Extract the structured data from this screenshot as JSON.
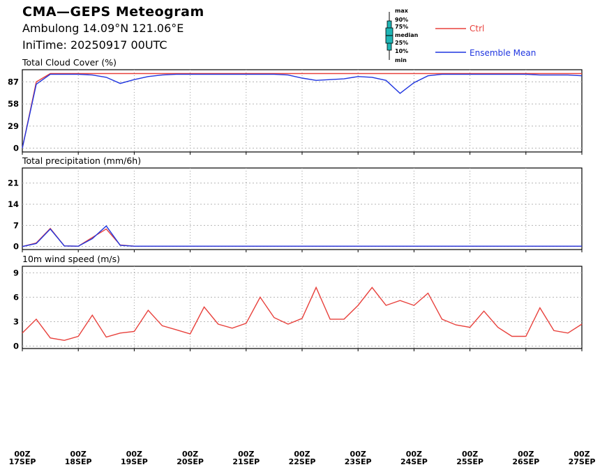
{
  "header": {
    "title": "CMA—GEPS Meteogram",
    "station": "Ambulong 14.09°N 121.06°E",
    "init_time": "IniTime: 20250917 00UTC"
  },
  "legend": {
    "key_labels": [
      "max",
      "90%",
      "75%",
      "median",
      "25%",
      "10%",
      "min"
    ],
    "ctrl_label": "Ctrl",
    "mean_label": "Ensemble Mean",
    "ctrl_color": "#e8413c",
    "mean_color": "#1f35e0",
    "box_color": "#1fb5b5"
  },
  "x_axis": {
    "tick_labels": [
      [
        "00Z",
        "17SEP"
      ],
      [
        "00Z",
        "18SEP"
      ],
      [
        "00Z",
        "19SEP"
      ],
      [
        "00Z",
        "20SEP"
      ],
      [
        "00Z",
        "21SEP"
      ],
      [
        "00Z",
        "22SEP"
      ],
      [
        "00Z",
        "23SEP"
      ],
      [
        "00Z",
        "24SEP"
      ],
      [
        "00Z",
        "25SEP"
      ],
      [
        "00Z",
        "26SEP"
      ],
      [
        "00Z",
        "27SEP"
      ]
    ]
  },
  "chart_data": [
    {
      "type": "box-line",
      "title": "Total Cloud Cover (%)",
      "x_unit": "hours from 2025-09-17 00Z, 6-hourly",
      "ylim": [
        -5,
        103
      ],
      "yticks": [
        0,
        29,
        58,
        87
      ],
      "grid": true,
      "ctrl": [
        0,
        87,
        98,
        98,
        98,
        98,
        98,
        98,
        98,
        98,
        98,
        98,
        98,
        98,
        98,
        98,
        98,
        98,
        98,
        98,
        98,
        98,
        98,
        98,
        98,
        98,
        98,
        98,
        98,
        98,
        98,
        98,
        98,
        98,
        98,
        98,
        98,
        98,
        98,
        98,
        98
      ],
      "mean": [
        0,
        84,
        97,
        97,
        97,
        96,
        93,
        85,
        90,
        94,
        96,
        97,
        97,
        97,
        97,
        97,
        97,
        97,
        97,
        96,
        92,
        89,
        90,
        91,
        94,
        93,
        89,
        72,
        86,
        95,
        97,
        97,
        97,
        97,
        97,
        97,
        97,
        96,
        96,
        96,
        95
      ]
    },
    {
      "type": "box-line",
      "title": "Total precipitation (mm/6h)",
      "x_unit": "hours from 2025-09-17 00Z, 6-hourly",
      "ylim": [
        -1,
        26
      ],
      "yticks": [
        0,
        7,
        14,
        21
      ],
      "grid": true,
      "ctrl": [
        0,
        1.2,
        6.0,
        0.2,
        0.1,
        3.0,
        5.8,
        0.5,
        0.1,
        0.1,
        0.1,
        0.1,
        0.1,
        0.1,
        0.1,
        0.1,
        0.1,
        0.1,
        0.1,
        0.1,
        0.1,
        0.1,
        0.1,
        0.1,
        0.1,
        0.1,
        0.1,
        0.1,
        0.1,
        0.1,
        0.1,
        0.1,
        0.1,
        0.1,
        0.1,
        0.1,
        0.1,
        0.1,
        0.1,
        0.1,
        0.1
      ],
      "mean": [
        0,
        1.0,
        5.8,
        0.2,
        0.1,
        2.6,
        6.8,
        0.4,
        0.1,
        0.1,
        0.1,
        0.1,
        0.1,
        0.1,
        0.1,
        0.1,
        0.1,
        0.1,
        0.1,
        0.1,
        0.1,
        0.1,
        0.1,
        0.1,
        0.1,
        0.1,
        0.1,
        0.1,
        0.1,
        0.1,
        0.1,
        0.1,
        0.1,
        0.1,
        0.1,
        0.1,
        0.1,
        0.1,
        0.1,
        0.1,
        0.1
      ]
    },
    {
      "type": "box-line",
      "title": "10m wind speed (m/s)",
      "x_unit": "hours from 2025-09-17 00Z, 6-hourly",
      "ylim": [
        -0.3,
        9.8
      ],
      "yticks": [
        0,
        3,
        6,
        9
      ],
      "grid": true,
      "ctrl": [
        1.6,
        3.3,
        1.0,
        0.7,
        1.2,
        3.8,
        1.1,
        1.6,
        1.8,
        4.4,
        2.5,
        2.0,
        1.5,
        4.8,
        2.7,
        2.2,
        2.8,
        6.0,
        3.5,
        2.7,
        3.4,
        7.2,
        3.3,
        3.3,
        5.0,
        7.2,
        5.0,
        5.6,
        5.0,
        6.5,
        3.3,
        2.6,
        2.3,
        4.3,
        2.3,
        1.2,
        1.2,
        4.7,
        1.9,
        1.6,
        2.7
      ]
    }
  ]
}
